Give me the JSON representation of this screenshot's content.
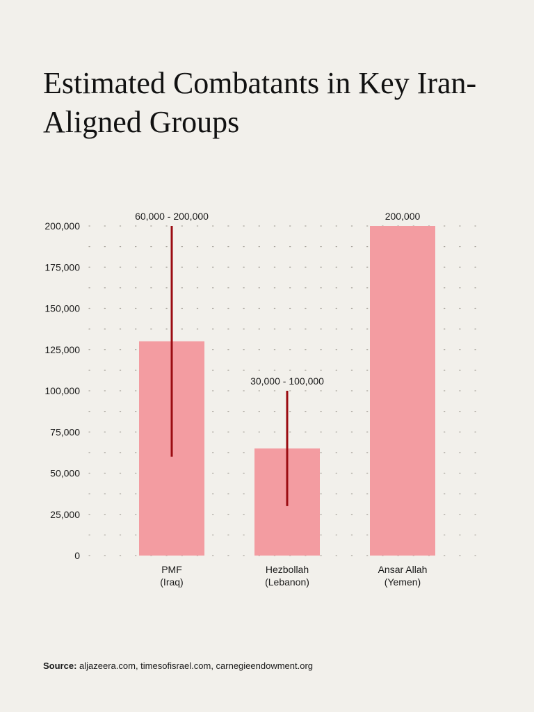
{
  "chart_data": {
    "type": "bar",
    "title": "Estimated Combatants in Key Iran-Aligned Groups",
    "categories": [
      [
        "PMF",
        "(Iraq)"
      ],
      [
        "Hezbollah",
        "(Lebanon)"
      ],
      [
        "Ansar Allah",
        "(Yemen)"
      ]
    ],
    "values": [
      130000,
      65000,
      200000
    ],
    "ranges": [
      {
        "low": 60000,
        "high": 200000,
        "label": "60,000 - 200,000"
      },
      {
        "low": 30000,
        "high": 100000,
        "label": "30,000 - 100,000"
      },
      null
    ],
    "value_labels": [
      "",
      "",
      "200,000"
    ],
    "ylim": [
      0,
      200000
    ],
    "yticks": [
      0,
      25000,
      50000,
      75000,
      100000,
      125000,
      150000,
      175000,
      200000
    ],
    "ytick_labels": [
      "0",
      "25,000",
      "50,000",
      "75,000",
      "100,000",
      "125,000",
      "150,000",
      "175,000",
      "200,000"
    ],
    "xlabel": "",
    "ylabel": "",
    "grid": "dotted-horizontal",
    "colors": {
      "bar": "#f39ca1",
      "range_line": "#9b0c12",
      "grid": "#a8a49c",
      "text": "#1a1a1a",
      "background": "#f2f0eb"
    }
  },
  "source": {
    "label": "Source:",
    "text": "aljazeera.com, timesofisrael.com, carnegieendowment.org"
  }
}
